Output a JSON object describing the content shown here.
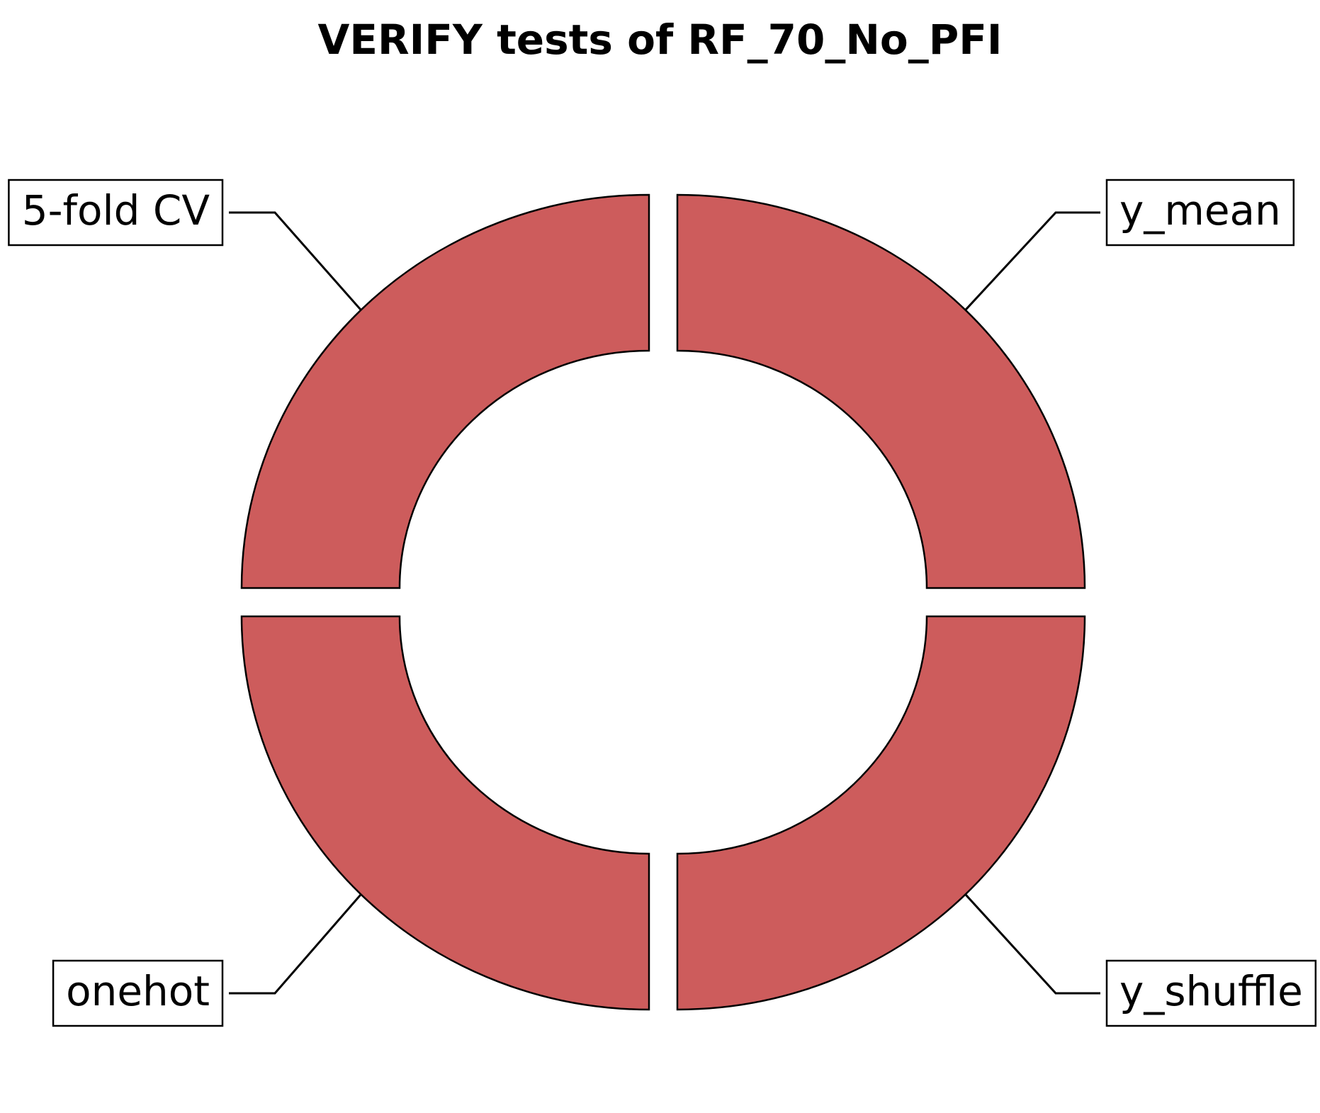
{
  "chart_data": {
    "type": "pie",
    "title": "VERIFY tests of RF_70_No_PFI",
    "style": "donut",
    "slices": [
      {
        "label": "y_mean",
        "value": 1
      },
      {
        "label": "y_shuffle",
        "value": 1
      },
      {
        "label": "onehot",
        "value": 1
      },
      {
        "label": "5-fold CV",
        "value": 1
      }
    ],
    "slice_color": "#CD5C5C",
    "edge_color": "#000000"
  }
}
